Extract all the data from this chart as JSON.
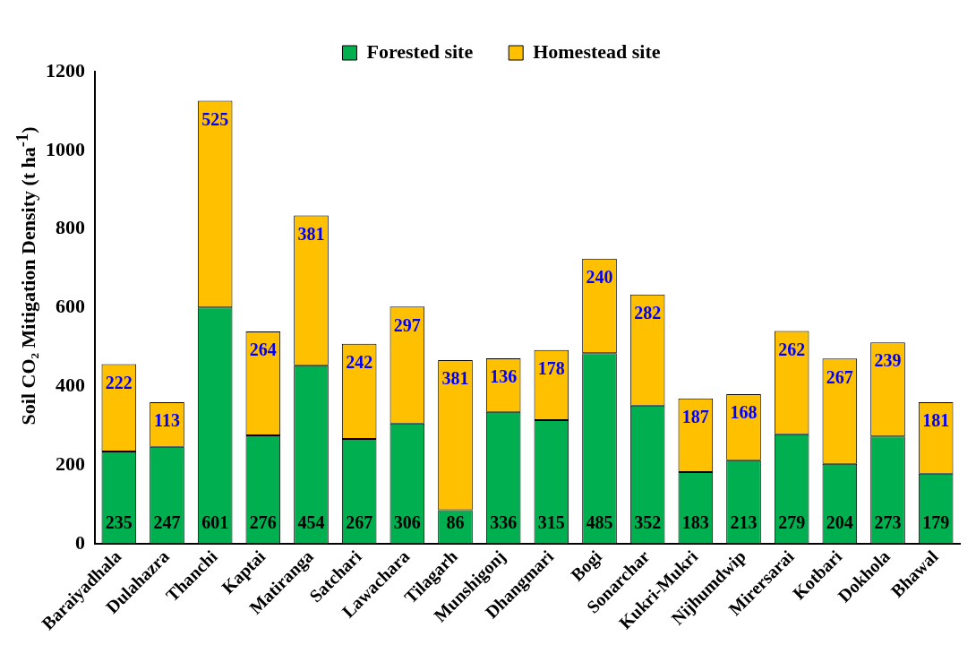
{
  "chart_data": {
    "type": "bar",
    "stacked": true,
    "ylabel": "Soil CO₂ Mitigation Density (t ha$^{-1}$)",
    "categories": [
      "Baraiyadhala",
      "Dulahazra",
      "Thanchi",
      "Kaptai",
      "Matiranga",
      "Satchari",
      "Lawachara",
      "Tilagarh",
      "Munshigonj",
      "Dhangmari",
      "Bogi",
      "Sonarchar",
      "Kukri-Mukri",
      "Nijhumdwip",
      "Mirersarai",
      "Kotbari",
      "Dokhola",
      "Bhawal"
    ],
    "series": [
      {
        "name": "Forested site",
        "color": "#00b050",
        "values": [
          235,
          247,
          601,
          276,
          454,
          267,
          306,
          86,
          336,
          315,
          485,
          352,
          183,
          213,
          279,
          204,
          273,
          179
        ]
      },
      {
        "name": "Homestead site",
        "color": "#ffc000",
        "values": [
          222,
          113,
          525,
          264,
          381,
          242,
          297,
          381,
          136,
          178,
          240,
          282,
          187,
          168,
          262,
          267,
          239,
          181
        ]
      }
    ],
    "ylim": [
      0,
      1200
    ],
    "yticks": [
      0,
      200,
      400,
      600,
      800,
      1000,
      1200
    ],
    "grid": false,
    "legend": "top",
    "data_labels": true
  }
}
